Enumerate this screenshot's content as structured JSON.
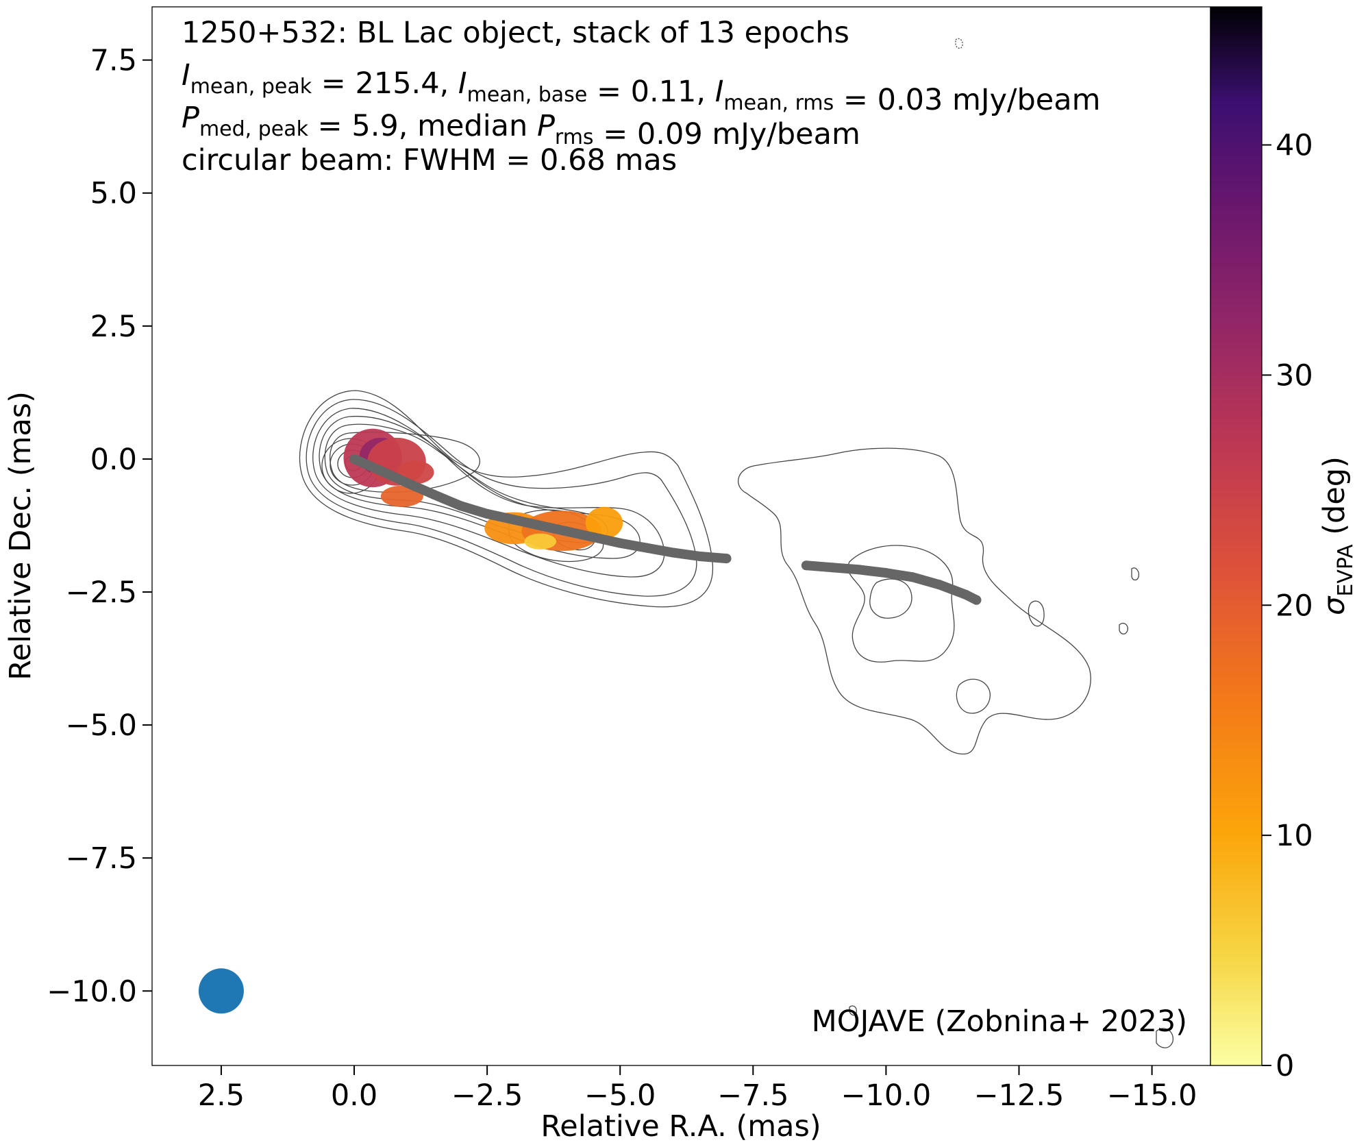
{
  "chart_data": {
    "type": "heatmap",
    "xlabel": "Relative R.A. (mas)",
    "ylabel": "Relative Dec. (mas)",
    "xlim": [
      3.8,
      -16.1
    ],
    "ylim": [
      -11.4,
      8.5
    ],
    "x_ticks": [
      2.5,
      0.0,
      -2.5,
      -5.0,
      -7.5,
      -10.0,
      -12.5,
      -15.0
    ],
    "x_tick_labels": [
      "2.5",
      "0.0",
      "−2.5",
      "−5.0",
      "−7.5",
      "−10.0",
      "−12.5",
      "−15.0"
    ],
    "y_ticks": [
      7.5,
      5.0,
      2.5,
      0.0,
      -2.5,
      -5.0,
      -7.5,
      -10.0
    ],
    "y_tick_labels": [
      "7.5",
      "5.0",
      "2.5",
      "0.0",
      "−2.5",
      "−5.0",
      "−7.5",
      "−10.0"
    ],
    "annotation_lines": [
      {
        "parts": [
          {
            "t": "1250+532: BL Lac object, stack of 13 epochs"
          }
        ]
      },
      {
        "parts": [
          {
            "t": "I",
            "i": true
          },
          {
            "t": "mean, peak",
            "sub": true
          },
          {
            "t": " = 215.4, "
          },
          {
            "t": "I",
            "i": true
          },
          {
            "t": "mean, base",
            "sub": true
          },
          {
            "t": " = 0.11, "
          },
          {
            "t": "I",
            "i": true
          },
          {
            "t": "mean, rms",
            "sub": true
          },
          {
            "t": " = 0.03 mJy/beam"
          }
        ]
      },
      {
        "parts": [
          {
            "t": "P",
            "i": true
          },
          {
            "t": "med, peak",
            "sub": true
          },
          {
            "t": " = 5.9, median "
          },
          {
            "t": "P",
            "i": true
          },
          {
            "t": "rms",
            "sub": true
          },
          {
            "t": " = 0.09 mJy/beam"
          }
        ]
      },
      {
        "parts": [
          {
            "t": "circular beam: FWHM = 0.68 mas"
          }
        ]
      }
    ],
    "credit": "MOJAVE (Zobnina+ 2023)",
    "colorbar": {
      "label_symbol": "σ",
      "label_sub": "EVPA",
      "label_unit": " (deg)",
      "range": [
        0,
        46
      ],
      "ticks": [
        0,
        10,
        20,
        30,
        40
      ],
      "colormap": "inferno_r"
    },
    "beam": {
      "x": 2.5,
      "y": -10.0,
      "fwhm": 0.68,
      "color": "#1f77b4"
    },
    "ridgeline": {
      "color": "#666666",
      "segments": [
        [
          [
            0.0,
            0.0
          ],
          [
            -0.5,
            -0.22
          ],
          [
            -1.0,
            -0.45
          ],
          [
            -1.5,
            -0.67
          ],
          [
            -2.0,
            -0.88
          ],
          [
            -2.5,
            -1.03
          ],
          [
            -3.0,
            -1.14
          ],
          [
            -3.5,
            -1.25
          ],
          [
            -4.0,
            -1.36
          ],
          [
            -4.5,
            -1.47
          ],
          [
            -5.0,
            -1.58
          ],
          [
            -5.5,
            -1.67
          ],
          [
            -6.0,
            -1.76
          ],
          [
            -6.5,
            -1.83
          ],
          [
            -7.0,
            -1.87
          ]
        ],
        [
          [
            -8.5,
            -2.0
          ],
          [
            -9.0,
            -2.04
          ],
          [
            -9.5,
            -2.08
          ],
          [
            -10.0,
            -2.14
          ],
          [
            -10.5,
            -2.22
          ],
          [
            -11.0,
            -2.36
          ],
          [
            -11.5,
            -2.55
          ],
          [
            -11.7,
            -2.65
          ]
        ]
      ]
    },
    "evpa_regions": [
      {
        "x": -0.35,
        "y": 0.02,
        "rx": 0.55,
        "ry": 0.55,
        "value": 27
      },
      {
        "x": -0.5,
        "y": 0.05,
        "rx": 0.4,
        "ry": 0.35,
        "value": 32
      },
      {
        "x": -0.8,
        "y": -0.05,
        "rx": 0.55,
        "ry": 0.45,
        "value": 25
      },
      {
        "x": -1.15,
        "y": -0.25,
        "rx": 0.35,
        "ry": 0.22,
        "value": 24
      },
      {
        "x": -0.9,
        "y": -0.7,
        "rx": 0.4,
        "ry": 0.2,
        "value": 19
      },
      {
        "x": -3.0,
        "y": -1.3,
        "rx": 0.55,
        "ry": 0.3,
        "value": 13
      },
      {
        "x": -3.9,
        "y": -1.35,
        "rx": 0.75,
        "ry": 0.38,
        "value": 17
      },
      {
        "x": -4.7,
        "y": -1.2,
        "rx": 0.35,
        "ry": 0.3,
        "value": 11
      },
      {
        "x": -3.5,
        "y": -1.55,
        "rx": 0.3,
        "ry": 0.15,
        "value": 6
      }
    ]
  }
}
